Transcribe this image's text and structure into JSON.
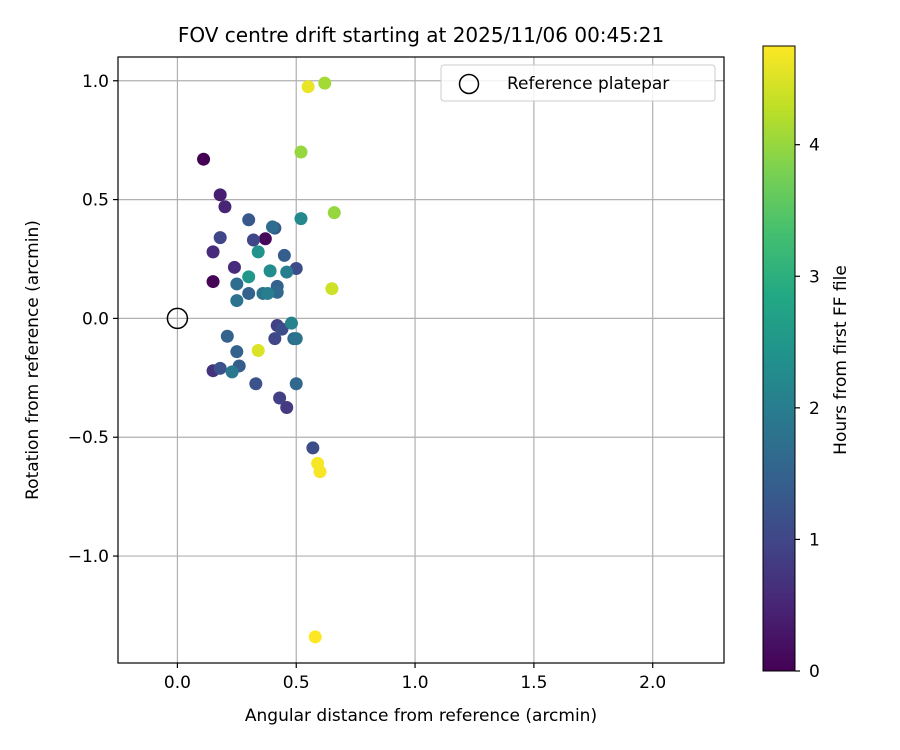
{
  "chart_data": {
    "type": "scatter",
    "title": "FOV centre drift starting at 2025/11/06 00:45:21",
    "xlabel": "Angular distance from reference (arcmin)",
    "ylabel": "Rotation from reference (arcmin)",
    "xlim": [
      -0.25,
      2.3
    ],
    "ylim": [
      -1.45,
      1.1
    ],
    "xticks": [
      0.0,
      0.5,
      1.0,
      1.5,
      2.0
    ],
    "xtick_labels": [
      "0.0",
      "0.5",
      "1.0",
      "1.5",
      "2.0"
    ],
    "yticks": [
      -1.0,
      -0.5,
      0.0,
      0.5,
      1.0
    ],
    "ytick_labels": [
      "−1.0",
      "−0.5",
      "0.0",
      "0.5",
      "1.0"
    ],
    "grid": true,
    "legend": {
      "label": "Reference platepar",
      "location": "top-right"
    },
    "reference_point": {
      "x": 0.0,
      "y": 0.0
    },
    "colorbar": {
      "label": "Hours from first FF file",
      "range": [
        0,
        4.75
      ],
      "ticks": [
        0,
        1,
        2,
        3,
        4
      ],
      "tick_labels": [
        "0",
        "1",
        "2",
        "3",
        "4"
      ],
      "colormap": "viridis"
    },
    "points": [
      {
        "x": 0.11,
        "y": 0.67,
        "t": 0.0
      },
      {
        "x": 0.15,
        "y": 0.155,
        "t": 0.05
      },
      {
        "x": 0.37,
        "y": 0.335,
        "t": 0.1
      },
      {
        "x": 0.18,
        "y": 0.52,
        "t": 0.4
      },
      {
        "x": 0.2,
        "y": 0.47,
        "t": 0.5
      },
      {
        "x": 0.15,
        "y": 0.28,
        "t": 0.6
      },
      {
        "x": 0.24,
        "y": 0.215,
        "t": 0.6
      },
      {
        "x": 0.15,
        "y": -0.22,
        "t": 0.7
      },
      {
        "x": 0.46,
        "y": -0.375,
        "t": 0.8
      },
      {
        "x": 0.43,
        "y": -0.335,
        "t": 0.9
      },
      {
        "x": 0.42,
        "y": -0.03,
        "t": 0.9
      },
      {
        "x": 0.18,
        "y": 0.34,
        "t": 1.0
      },
      {
        "x": 0.32,
        "y": 0.33,
        "t": 1.0
      },
      {
        "x": 0.41,
        "y": -0.085,
        "t": 1.0
      },
      {
        "x": 0.44,
        "y": -0.045,
        "t": 1.1
      },
      {
        "x": 0.5,
        "y": 0.21,
        "t": 1.1
      },
      {
        "x": 0.57,
        "y": -0.545,
        "t": 1.1
      },
      {
        "x": 0.33,
        "y": -0.275,
        "t": 1.2
      },
      {
        "x": 0.18,
        "y": -0.21,
        "t": 1.2
      },
      {
        "x": 0.3,
        "y": 0.415,
        "t": 1.3
      },
      {
        "x": 0.41,
        "y": 0.38,
        "t": 1.3
      },
      {
        "x": 0.45,
        "y": 0.265,
        "t": 1.4
      },
      {
        "x": 0.26,
        "y": -0.2,
        "t": 1.4
      },
      {
        "x": 0.21,
        "y": -0.075,
        "t": 1.5
      },
      {
        "x": 0.25,
        "y": -0.14,
        "t": 1.5
      },
      {
        "x": 0.3,
        "y": 0.105,
        "t": 1.5
      },
      {
        "x": 0.42,
        "y": 0.135,
        "t": 1.5
      },
      {
        "x": 0.42,
        "y": 0.11,
        "t": 1.6
      },
      {
        "x": 0.49,
        "y": -0.085,
        "t": 1.6
      },
      {
        "x": 0.5,
        "y": -0.275,
        "t": 1.6
      },
      {
        "x": 0.4,
        "y": 0.385,
        "t": 1.7
      },
      {
        "x": 0.25,
        "y": 0.145,
        "t": 1.7
      },
      {
        "x": 0.25,
        "y": 0.075,
        "t": 1.8
      },
      {
        "x": 0.36,
        "y": 0.105,
        "t": 1.8
      },
      {
        "x": 0.5,
        "y": -0.085,
        "t": 1.8
      },
      {
        "x": 0.23,
        "y": -0.225,
        "t": 1.9
      },
      {
        "x": 0.38,
        "y": 0.105,
        "t": 2.0
      },
      {
        "x": 0.46,
        "y": 0.195,
        "t": 2.0
      },
      {
        "x": 0.48,
        "y": -0.02,
        "t": 2.1
      },
      {
        "x": 0.52,
        "y": 0.42,
        "t": 2.2
      },
      {
        "x": 0.39,
        "y": 0.2,
        "t": 2.3
      },
      {
        "x": 0.34,
        "y": 0.28,
        "t": 2.4
      },
      {
        "x": 0.3,
        "y": 0.175,
        "t": 2.5
      },
      {
        "x": 0.52,
        "y": 0.7,
        "t": 4.0
      },
      {
        "x": 0.66,
        "y": 0.445,
        "t": 4.0
      },
      {
        "x": 0.62,
        "y": 0.99,
        "t": 4.1
      },
      {
        "x": 0.65,
        "y": 0.125,
        "t": 4.4
      },
      {
        "x": 0.55,
        "y": 0.975,
        "t": 4.6
      },
      {
        "x": 0.34,
        "y": -0.135,
        "t": 4.5
      },
      {
        "x": 0.59,
        "y": -0.61,
        "t": 4.7
      },
      {
        "x": 0.6,
        "y": -0.645,
        "t": 4.7
      },
      {
        "x": 0.58,
        "y": -1.34,
        "t": 4.75
      }
    ]
  }
}
